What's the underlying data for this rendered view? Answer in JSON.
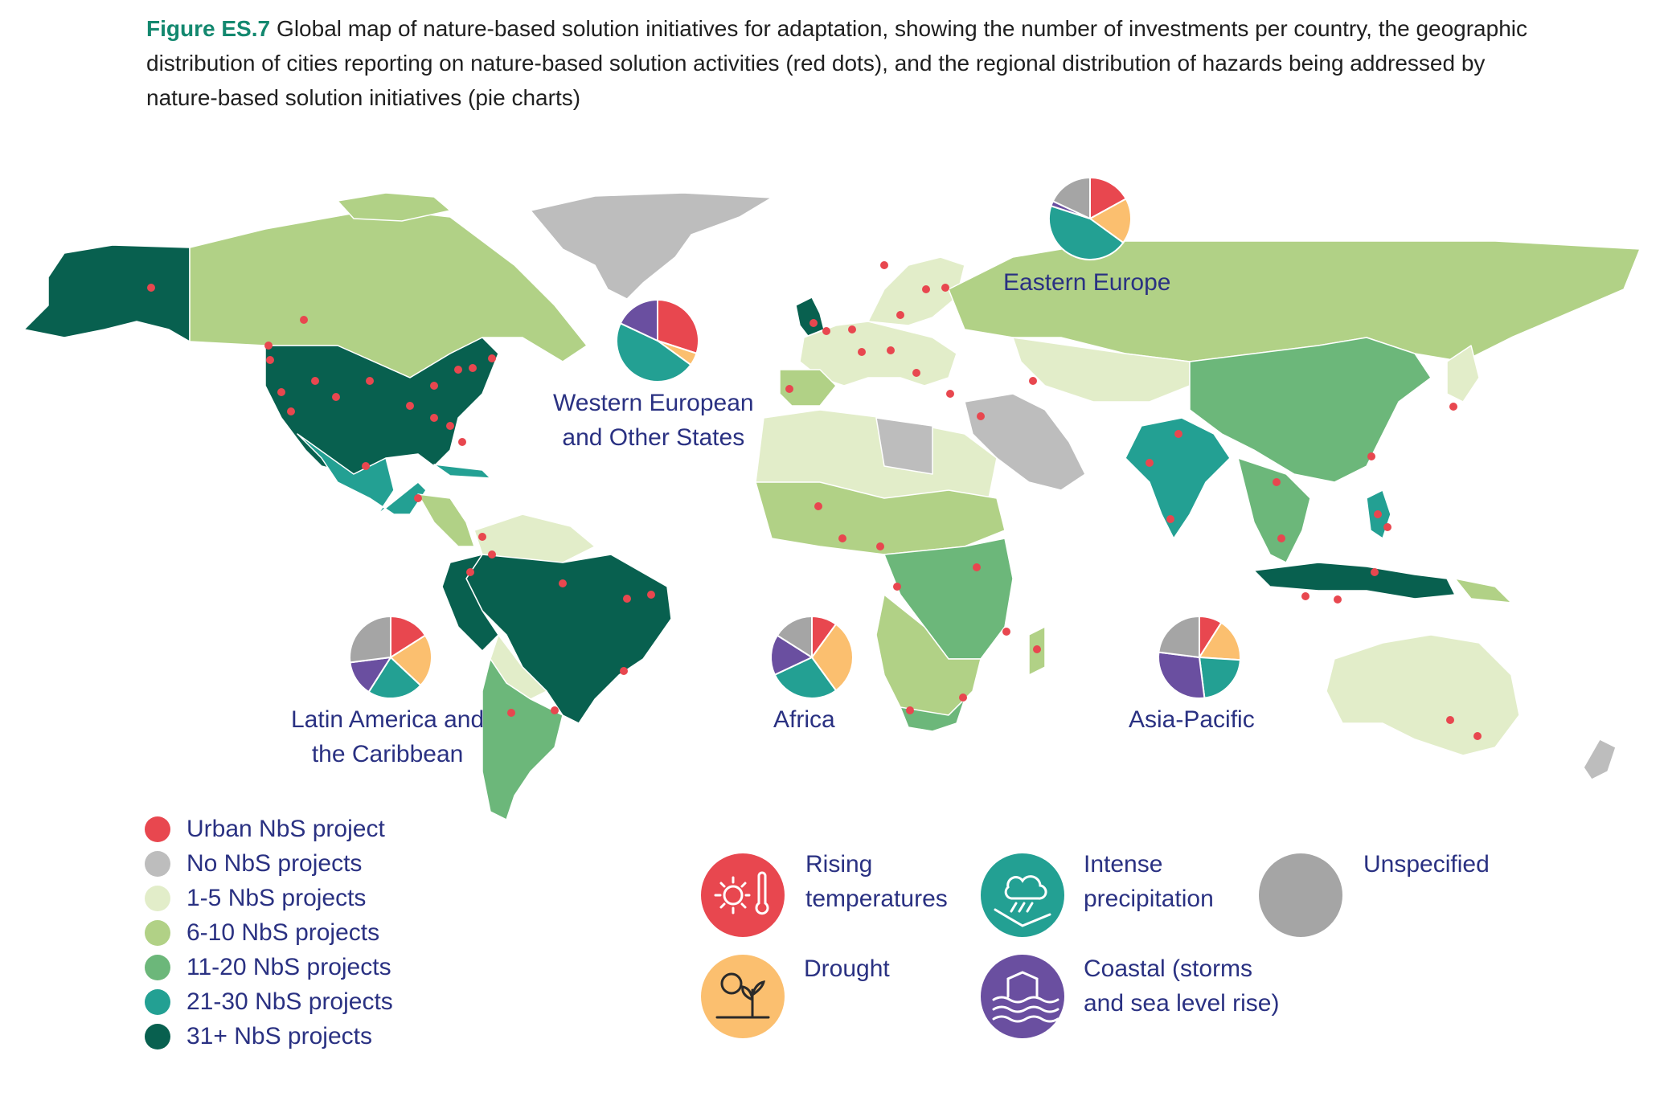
{
  "caption": {
    "figure_label": "Figure ES.7",
    "text": "Global map of nature-based solution initiatives for adaptation, showing the number of investments per country, the geographic distribution of cities reporting on nature-based solution activities (red dots), and the regional distribution of hazards being addressed by nature-based solution initiatives (pie charts)"
  },
  "colors": {
    "urban_dot": "#e8474f",
    "none": "#bdbdbd",
    "c1_5": "#e2edc9",
    "c6_10": "#b1d186",
    "c11_20": "#6cb77a",
    "c21_30": "#23a093",
    "c31": "#08604f",
    "rising_temperatures": "#e8474f",
    "drought": "#fbbf6f",
    "intense_precipitation": "#23a093",
    "coastal": "#6a4fa0",
    "unspecified": "#a5a5a5"
  },
  "regions": {
    "eastern_europe": "Eastern Europe",
    "western_europe_line1": "Western European",
    "western_europe_line2": "and Other States",
    "latin_america_line1": "Latin America and",
    "latin_america_line2": "the Caribbean",
    "africa": "Africa",
    "asia_pacific": "Asia-Pacific"
  },
  "chart_data": {
    "type": "pie",
    "categories": [
      "Rising temperatures",
      "Drought",
      "Intense precipitation",
      "Coastal (storms and sea level rise)",
      "Unspecified"
    ],
    "pies": [
      {
        "region": "Eastern Europe",
        "values": [
          17,
          18,
          45,
          2,
          18
        ]
      },
      {
        "region": "Western European and Other States",
        "values": [
          30,
          5,
          47,
          18,
          0
        ]
      },
      {
        "region": "Latin America and the Caribbean",
        "values": [
          16,
          21,
          22,
          14,
          27
        ]
      },
      {
        "region": "Africa",
        "values": [
          10,
          30,
          28,
          16,
          16
        ]
      },
      {
        "region": "Asia-Pacific",
        "values": [
          9,
          17,
          22,
          29,
          23
        ]
      }
    ]
  },
  "legend": {
    "items": [
      {
        "label": "Urban NbS project",
        "color_key": "urban_dot"
      },
      {
        "label": "No NbS projects",
        "color_key": "none"
      },
      {
        "label": "1-5 NbS projects",
        "color_key": "c1_5"
      },
      {
        "label": "6-10 NbS projects",
        "color_key": "c6_10"
      },
      {
        "label": "11-20 NbS projects",
        "color_key": "c11_20"
      },
      {
        "label": "21-30 NbS projects",
        "color_key": "c21_30"
      },
      {
        "label": "31+ NbS projects",
        "color_key": "c31"
      }
    ]
  },
  "hazards": {
    "rising_line1": "Rising",
    "rising_line2": "temperatures",
    "drought": "Drought",
    "precip_line1": "Intense",
    "precip_line2": "precipitation",
    "coastal_line1": "Coastal (storms",
    "coastal_line2": "and sea level rise)",
    "unspecified": "Unspecified",
    "icons": [
      "sun-thermometer-icon",
      "sun-plant-icon",
      "cloud-rain-icon",
      "house-waves-icon",
      "grey-circle"
    ]
  }
}
